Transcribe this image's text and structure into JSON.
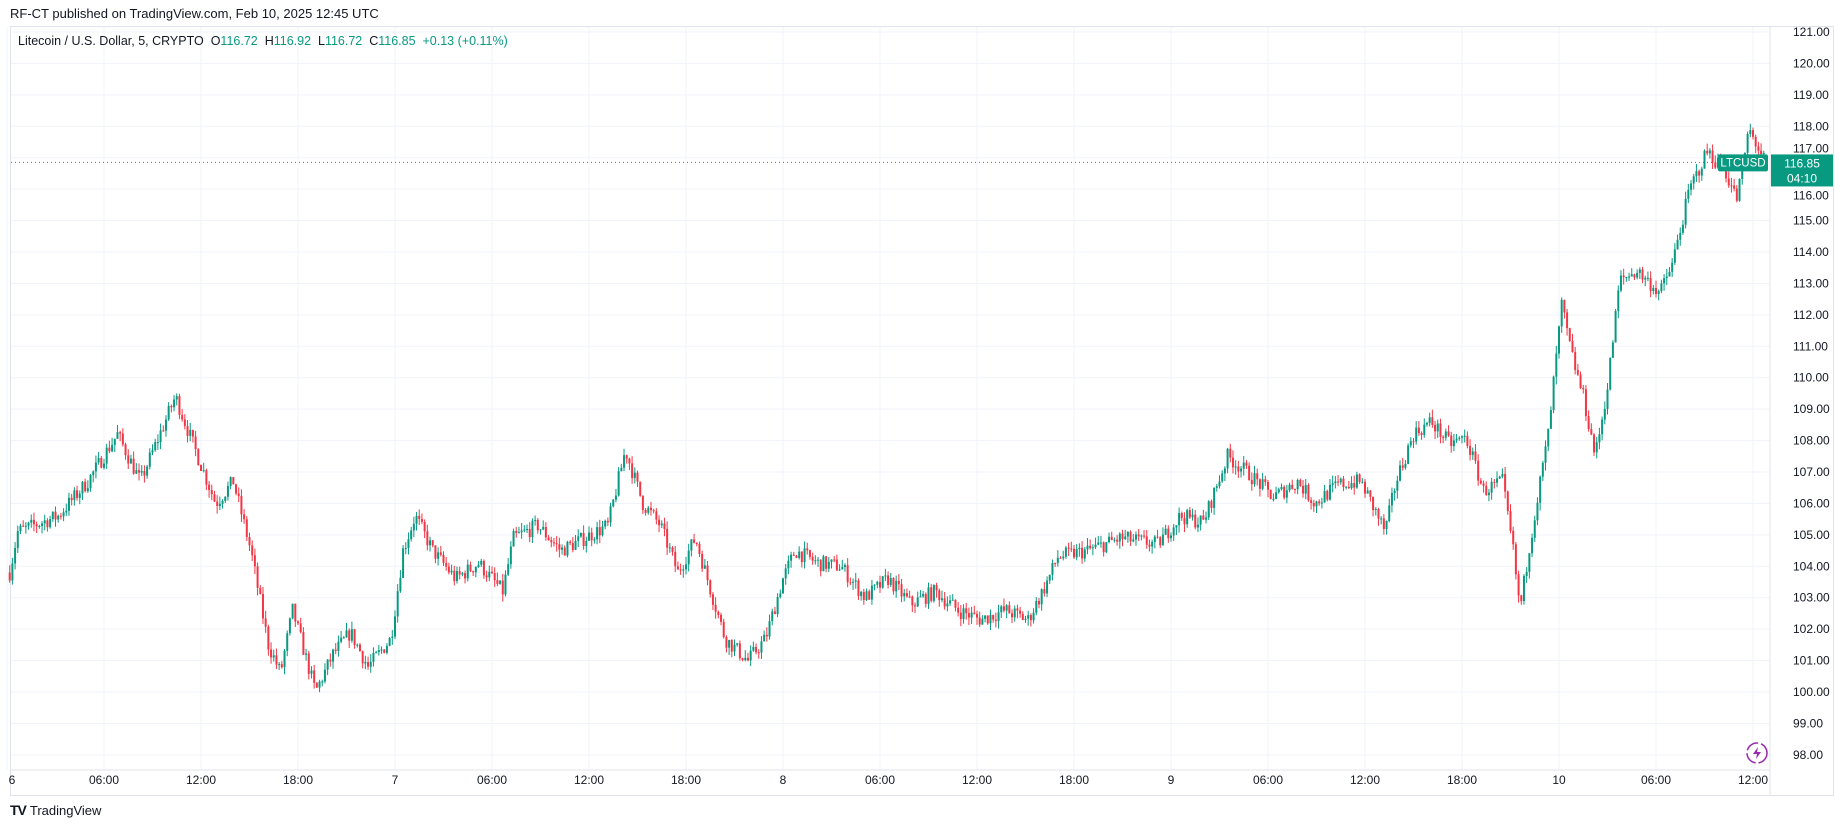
{
  "header": {
    "published": "RF-CT published on TradingView.com, Feb 10, 2025 12:45 UTC"
  },
  "legend": {
    "symbol": "Litecoin / U.S. Dollar, 5, CRYPTO",
    "open_label": "O",
    "open": "116.72",
    "high_label": "H",
    "high": "116.92",
    "low_label": "L",
    "low": "116.72",
    "close_label": "C",
    "close": "116.85",
    "change": "+0.13 (+0.11%)"
  },
  "price_badge": {
    "ticker": "LTCUSD",
    "price": "116.85",
    "countdown": "04:10"
  },
  "footer": {
    "brand": "TradingView"
  },
  "colors": {
    "up": "#089981",
    "down": "#f23645",
    "grid": "#f0f3fa",
    "accent": "#089981",
    "lightning": "#9c27b0"
  },
  "chart_data": {
    "type": "candlestick",
    "symbol": "LTCUSD",
    "interval": "5",
    "ylim": [
      97.6,
      121.2
    ],
    "y_ticks": [
      "98.00",
      "99.00",
      "100.00",
      "101.00",
      "102.00",
      "103.00",
      "104.00",
      "105.00",
      "106.00",
      "107.00",
      "108.00",
      "109.00",
      "110.00",
      "111.00",
      "112.00",
      "113.00",
      "114.00",
      "115.00",
      "116.00",
      "117.00",
      "118.00",
      "119.00",
      "120.00",
      "121.00"
    ],
    "x_ticks": [
      {
        "t": "02-06 00:00",
        "label": "6"
      },
      {
        "t": "02-06 06:00",
        "label": "06:00"
      },
      {
        "t": "02-06 12:00",
        "label": "12:00"
      },
      {
        "t": "02-06 18:00",
        "label": "18:00"
      },
      {
        "t": "02-07 00:00",
        "label": "7"
      },
      {
        "t": "02-07 06:00",
        "label": "06:00"
      },
      {
        "t": "02-07 12:00",
        "label": "12:00"
      },
      {
        "t": "02-07 18:00",
        "label": "18:00"
      },
      {
        "t": "02-08 00:00",
        "label": "8"
      },
      {
        "t": "02-08 06:00",
        "label": "06:00"
      },
      {
        "t": "02-08 12:00",
        "label": "12:00"
      },
      {
        "t": "02-08 18:00",
        "label": "18:00"
      },
      {
        "t": "02-09 00:00",
        "label": "9"
      },
      {
        "t": "02-09 06:00",
        "label": "06:00"
      },
      {
        "t": "02-09 12:00",
        "label": "12:00"
      },
      {
        "t": "02-09 18:00",
        "label": "18:00"
      },
      {
        "t": "02-10 00:00",
        "label": "10"
      },
      {
        "t": "02-10 06:00",
        "label": "06:00"
      },
      {
        "t": "02-10 12:00",
        "label": "12:00"
      }
    ],
    "last_price": 116.85,
    "price_path": [
      {
        "t": "02-06 00:10",
        "p": 103.8
      },
      {
        "t": "02-06 00:40",
        "p": 105.1
      },
      {
        "t": "02-06 03:10",
        "p": 105.6
      },
      {
        "t": "02-06 05:00",
        "p": 106.7
      },
      {
        "t": "02-06 06:50",
        "p": 108.2
      },
      {
        "t": "02-06 08:15",
        "p": 106.7
      },
      {
        "t": "02-06 10:25",
        "p": 109.4
      },
      {
        "t": "02-06 11:30",
        "p": 107.9
      },
      {
        "t": "02-06 12:55",
        "p": 106.0
      },
      {
        "t": "02-06 14:00",
        "p": 106.7
      },
      {
        "t": "02-06 15:05",
        "p": 104.5
      },
      {
        "t": "02-06 16:10",
        "p": 101.5
      },
      {
        "t": "02-06 16:55",
        "p": 100.6
      },
      {
        "t": "02-06 17:40",
        "p": 102.6
      },
      {
        "t": "02-06 19:05",
        "p": 100.0
      },
      {
        "t": "02-06 20:10",
        "p": 101.2
      },
      {
        "t": "02-06 21:15",
        "p": 101.9
      },
      {
        "t": "02-06 22:20",
        "p": 100.8
      },
      {
        "t": "02-06 23:45",
        "p": 101.7
      },
      {
        "t": "02-07 00:30",
        "p": 104.5
      },
      {
        "t": "02-07 01:15",
        "p": 105.6
      },
      {
        "t": "02-07 02:20",
        "p": 104.5
      },
      {
        "t": "02-07 03:45",
        "p": 103.6
      },
      {
        "t": "02-07 05:10",
        "p": 104.1
      },
      {
        "t": "02-07 06:40",
        "p": 103.2
      },
      {
        "t": "02-07 07:20",
        "p": 104.9
      },
      {
        "t": "02-07 08:50",
        "p": 105.3
      },
      {
        "t": "02-07 10:15",
        "p": 104.5
      },
      {
        "t": "02-07 11:45",
        "p": 104.9
      },
      {
        "t": "02-07 13:10",
        "p": 105.3
      },
      {
        "t": "02-07 14:15",
        "p": 107.7
      },
      {
        "t": "02-07 15:20",
        "p": 106.0
      },
      {
        "t": "02-07 16:25",
        "p": 105.3
      },
      {
        "t": "02-07 17:30",
        "p": 103.8
      },
      {
        "t": "02-07 18:35",
        "p": 104.9
      },
      {
        "t": "02-07 19:40",
        "p": 103.0
      },
      {
        "t": "02-07 20:25",
        "p": 101.7
      },
      {
        "t": "02-07 21:50",
        "p": 101.0
      },
      {
        "t": "02-07 22:55",
        "p": 101.7
      },
      {
        "t": "02-08 00:00",
        "p": 103.6
      },
      {
        "t": "02-08 00:45",
        "p": 104.5
      },
      {
        "t": "02-08 02:10",
        "p": 104.1
      },
      {
        "t": "02-08 03:35",
        "p": 104.0
      },
      {
        "t": "02-08 05:05",
        "p": 103.0
      },
      {
        "t": "02-08 06:30",
        "p": 103.6
      },
      {
        "t": "02-08 07:55",
        "p": 102.8
      },
      {
        "t": "02-08 09:25",
        "p": 103.2
      },
      {
        "t": "02-08 10:50",
        "p": 102.6
      },
      {
        "t": "02-08 12:15",
        "p": 102.3
      },
      {
        "t": "02-08 13:45",
        "p": 102.6
      },
      {
        "t": "02-08 15:10",
        "p": 102.3
      },
      {
        "t": "02-08 16:15",
        "p": 103.4
      },
      {
        "t": "02-08 17:00",
        "p": 104.3
      },
      {
        "t": "02-08 18:50",
        "p": 104.5
      },
      {
        "t": "02-08 20:55",
        "p": 104.9
      },
      {
        "t": "02-08 23:10",
        "p": 104.7
      },
      {
        "t": "02-09 00:35",
        "p": 105.6
      },
      {
        "t": "02-09 02:00",
        "p": 105.4
      },
      {
        "t": "02-09 03:30",
        "p": 107.5
      },
      {
        "t": "02-09 04:55",
        "p": 106.9
      },
      {
        "t": "02-09 06:20",
        "p": 106.2
      },
      {
        "t": "02-09 07:50",
        "p": 106.7
      },
      {
        "t": "02-09 08:55",
        "p": 106.0
      },
      {
        "t": "02-09 10:20",
        "p": 106.6
      },
      {
        "t": "02-09 11:45",
        "p": 106.7
      },
      {
        "t": "02-09 13:15",
        "p": 105.1
      },
      {
        "t": "02-09 13:55",
        "p": 106.7
      },
      {
        "t": "02-09 15:00",
        "p": 108.2
      },
      {
        "t": "02-09 16:05",
        "p": 108.6
      },
      {
        "t": "02-09 17:15",
        "p": 107.9
      },
      {
        "t": "02-09 18:15",
        "p": 108.1
      },
      {
        "t": "02-09 19:20",
        "p": 106.4
      },
      {
        "t": "02-09 20:30",
        "p": 106.7
      },
      {
        "t": "02-09 21:10",
        "p": 104.5
      },
      {
        "t": "02-09 21:35",
        "p": 102.6
      },
      {
        "t": "02-09 22:15",
        "p": 104.9
      },
      {
        "t": "02-09 23:20",
        "p": 108.2
      },
      {
        "t": "02-10 00:10",
        "p": 112.3
      },
      {
        "t": "02-10 00:45",
        "p": 110.8
      },
      {
        "t": "02-10 01:30",
        "p": 109.4
      },
      {
        "t": "02-10 02:15",
        "p": 107.5
      },
      {
        "t": "02-10 03:00",
        "p": 109.7
      },
      {
        "t": "02-10 03:45",
        "p": 113.1
      },
      {
        "t": "02-10 04:50",
        "p": 113.4
      },
      {
        "t": "02-10 06:15",
        "p": 112.7
      },
      {
        "t": "02-10 07:00",
        "p": 113.6
      },
      {
        "t": "02-10 08:05",
        "p": 116.0
      },
      {
        "t": "02-10 09:10",
        "p": 117.2
      },
      {
        "t": "02-10 10:15",
        "p": 116.6
      },
      {
        "t": "02-10 11:00",
        "p": 115.7
      },
      {
        "t": "02-10 11:45",
        "p": 117.9
      },
      {
        "t": "02-10 12:45",
        "p": 116.85
      }
    ]
  }
}
